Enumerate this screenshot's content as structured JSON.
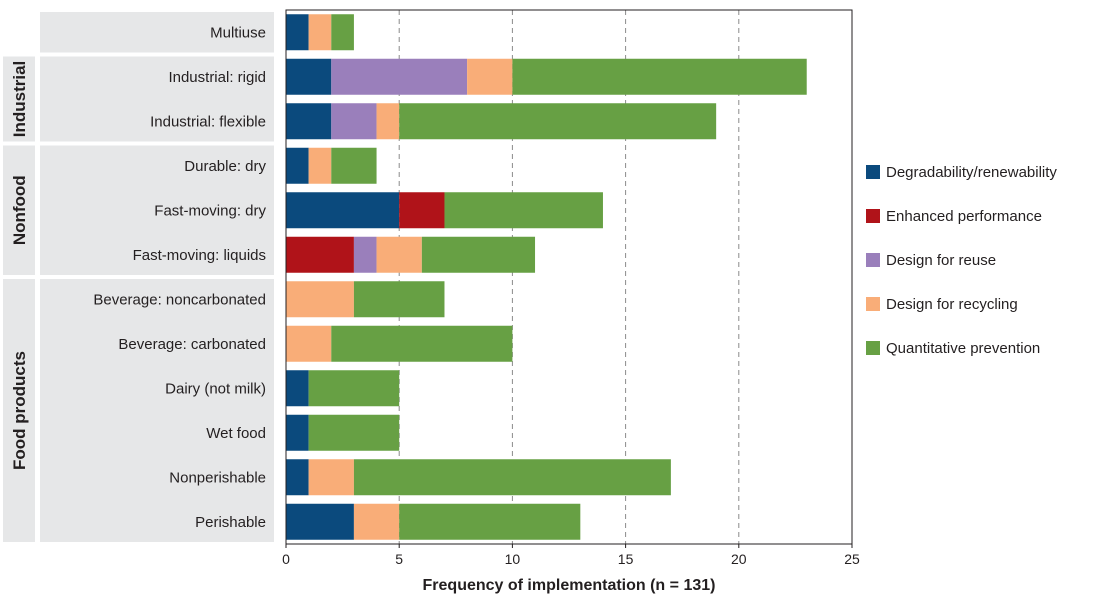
{
  "chart_data": {
    "type": "bar",
    "orientation": "horizontal",
    "stacked": true,
    "xlabel": "Frequency of implementation (n = 131)",
    "xlim": [
      0,
      25
    ],
    "xticks": [
      0,
      5,
      10,
      15,
      20,
      25
    ],
    "grid": "vertical dashed",
    "legend_position": "right",
    "categories": [
      "Multiuse",
      "Industrial: rigid",
      "Industrial: flexible",
      "Durable: dry",
      "Fast-moving: dry",
      "Fast-moving: liquids",
      "Beverage: noncarbonated",
      "Beverage: carbonated",
      "Dairy (not milk)",
      "Wet food",
      "Nonperishable",
      "Perishable"
    ],
    "groups": [
      {
        "label": "",
        "categories": [
          "Multiuse"
        ]
      },
      {
        "label": "Industrial",
        "categories": [
          "Industrial: rigid",
          "Industrial: flexible"
        ]
      },
      {
        "label": "Nonfood",
        "categories": [
          "Durable: dry",
          "Fast-moving: dry",
          "Fast-moving: liquids"
        ]
      },
      {
        "label": "Food products",
        "categories": [
          "Beverage: noncarbonated",
          "Beverage: carbonated",
          "Dairy (not milk)",
          "Wet food",
          "Nonperishable",
          "Perishable"
        ]
      }
    ],
    "series": [
      {
        "name": "Degradability/renewability",
        "color": "#0b4a7d",
        "values": [
          1,
          2,
          2,
          1,
          5,
          0,
          0,
          0,
          1,
          1,
          1,
          3
        ]
      },
      {
        "name": "Enhanced performance",
        "color": "#b01319",
        "values": [
          0,
          0,
          0,
          0,
          2,
          3,
          0,
          0,
          0,
          0,
          0,
          0
        ]
      },
      {
        "name": "Design for reuse",
        "color": "#9a7fbb",
        "values": [
          0,
          6,
          2,
          0,
          0,
          1,
          0,
          0,
          0,
          0,
          0,
          0
        ]
      },
      {
        "name": "Design for recycling",
        "color": "#f9ad78",
        "values": [
          1,
          2,
          1,
          1,
          0,
          2,
          3,
          2,
          0,
          0,
          2,
          2
        ]
      },
      {
        "name": "Quantitative prevention",
        "color": "#67a044",
        "values": [
          1,
          13,
          14,
          2,
          7,
          5,
          4,
          8,
          4,
          4,
          14,
          8
        ]
      }
    ]
  }
}
